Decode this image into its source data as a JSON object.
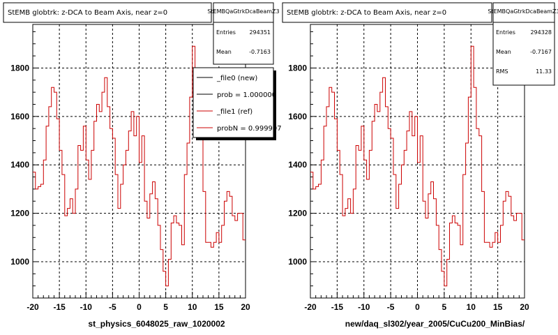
{
  "chart_data": [
    {
      "type": "line",
      "step": true,
      "title": "StEMB globtrk: z-DCA to Beam Axis, near z=0",
      "xlabel": "st_physics_6048025_raw_1020002",
      "ylabel": "",
      "xlim": [
        -20,
        20
      ],
      "ylim": [
        850,
        1980
      ],
      "x_ticks": [
        -20,
        -15,
        -10,
        -5,
        0,
        5,
        10,
        15,
        20
      ],
      "y_ticks": [
        1000,
        1200,
        1400,
        1600,
        1800
      ],
      "grid": true,
      "stats": {
        "name": "StEMBQaGtrkDcaBeamZ3",
        "rows": [
          {
            "label": "Entries",
            "value": "294351"
          },
          {
            "label": "Mean",
            "value": "-0.7163"
          }
        ]
      },
      "legend": {
        "placement": "top-right",
        "entries": [
          {
            "label": "_file0 (new)",
            "color": "#000000"
          },
          {
            "label": "prob = 1.000000",
            "color": "#000000"
          },
          {
            "label": "_file1 (ref)",
            "color": "#cc0000"
          },
          {
            "label": "probN = 0.999997",
            "color": "#cc0000"
          }
        ]
      },
      "series": [
        {
          "color": "#cc0000",
          "x": [
            -20,
            -19.5,
            -19,
            -18.5,
            -18,
            -17.5,
            -17,
            -16.5,
            -16,
            -15.5,
            -15,
            -14.5,
            -14,
            -13.5,
            -13,
            -12.5,
            -12,
            -11.5,
            -11,
            -10.5,
            -10,
            -9.5,
            -9,
            -8.5,
            -8,
            -7.5,
            -7,
            -6.5,
            -6,
            -5.5,
            -5,
            -4.5,
            -4,
            -3.5,
            -3,
            -2.5,
            -2,
            -1.5,
            -1,
            -0.5,
            0,
            0.5,
            1,
            1.5,
            2,
            2.5,
            3,
            3.5,
            4,
            4.5,
            5,
            5.5,
            6,
            6.5,
            7,
            7.5,
            8,
            8.5,
            9,
            9.5,
            10,
            10.5,
            11,
            11.5,
            12,
            12.5,
            13,
            13.5,
            14,
            14.5,
            15,
            15.5,
            16,
            16.5,
            17,
            17.5,
            18,
            18.5,
            19,
            19.5
          ],
          "y": [
            1370,
            1300,
            1310,
            1320,
            1420,
            1560,
            1640,
            1720,
            1700,
            1590,
            1460,
            1360,
            1190,
            1220,
            1260,
            1200,
            1300,
            1480,
            1460,
            1560,
            1420,
            1340,
            1460,
            1580,
            1650,
            1620,
            1700,
            1760,
            1640,
            1550,
            1510,
            1360,
            1220,
            1320,
            1400,
            1460,
            1540,
            1620,
            1520,
            1600,
            1410,
            1520,
            1250,
            1180,
            1280,
            1330,
            1260,
            1150,
            1050,
            960,
            900,
            1010,
            1160,
            1190,
            1160,
            1150,
            1070,
            1360,
            1490,
            1680,
            1890,
            1720,
            1550,
            1520,
            1290,
            1080,
            1080,
            1060,
            1080,
            1120,
            1080,
            1150,
            1250,
            1290,
            1270,
            1190,
            1170,
            1200,
            1200,
            1090
          ]
        }
      ]
    },
    {
      "type": "line",
      "step": true,
      "title": "StEMB globtrk: z-DCA to Beam Axis, near z=0",
      "xlabel": "new/daq_sl302/year_2005/CuCu200_MinBias/",
      "ylabel": "",
      "xlim": [
        -20,
        20
      ],
      "ylim": [
        850,
        1980
      ],
      "x_ticks": [
        -20,
        -15,
        -10,
        -5,
        0,
        5,
        10,
        15,
        20
      ],
      "y_ticks": [
        1000,
        1200,
        1400,
        1600,
        1800
      ],
      "grid": true,
      "stats": {
        "name": "StEMBQaGtrkDcaBeamZ3",
        "rows": [
          {
            "label": "Entries",
            "value": "294328"
          },
          {
            "label": "Mean",
            "value": "-0.7167"
          },
          {
            "label": "RMS",
            "value": "11.33"
          }
        ]
      },
      "series": [
        {
          "color": "#cc0000",
          "x": [
            -20,
            -19.5,
            -19,
            -18.5,
            -18,
            -17.5,
            -17,
            -16.5,
            -16,
            -15.5,
            -15,
            -14.5,
            -14,
            -13.5,
            -13,
            -12.5,
            -12,
            -11.5,
            -11,
            -10.5,
            -10,
            -9.5,
            -9,
            -8.5,
            -8,
            -7.5,
            -7,
            -6.5,
            -6,
            -5.5,
            -5,
            -4.5,
            -4,
            -3.5,
            -3,
            -2.5,
            -2,
            -1.5,
            -1,
            -0.5,
            0,
            0.5,
            1,
            1.5,
            2,
            2.5,
            3,
            3.5,
            4,
            4.5,
            5,
            5.5,
            6,
            6.5,
            7,
            7.5,
            8,
            8.5,
            9,
            9.5,
            10,
            10.5,
            11,
            11.5,
            12,
            12.5,
            13,
            13.5,
            14,
            14.5,
            15,
            15.5,
            16,
            16.5,
            17,
            17.5,
            18,
            18.5,
            19,
            19.5
          ],
          "y": [
            1370,
            1300,
            1310,
            1320,
            1420,
            1560,
            1640,
            1720,
            1700,
            1590,
            1460,
            1360,
            1190,
            1220,
            1260,
            1200,
            1300,
            1480,
            1460,
            1560,
            1420,
            1340,
            1460,
            1580,
            1650,
            1620,
            1700,
            1760,
            1640,
            1550,
            1510,
            1360,
            1220,
            1320,
            1400,
            1460,
            1540,
            1620,
            1520,
            1600,
            1410,
            1520,
            1250,
            1180,
            1280,
            1330,
            1260,
            1150,
            1050,
            960,
            900,
            1010,
            1160,
            1190,
            1160,
            1150,
            1070,
            1360,
            1490,
            1680,
            1890,
            1720,
            1550,
            1520,
            1290,
            1080,
            1080,
            1060,
            1080,
            1120,
            1080,
            1150,
            1250,
            1290,
            1270,
            1190,
            1170,
            1200,
            1200,
            1090
          ]
        }
      ]
    }
  ]
}
